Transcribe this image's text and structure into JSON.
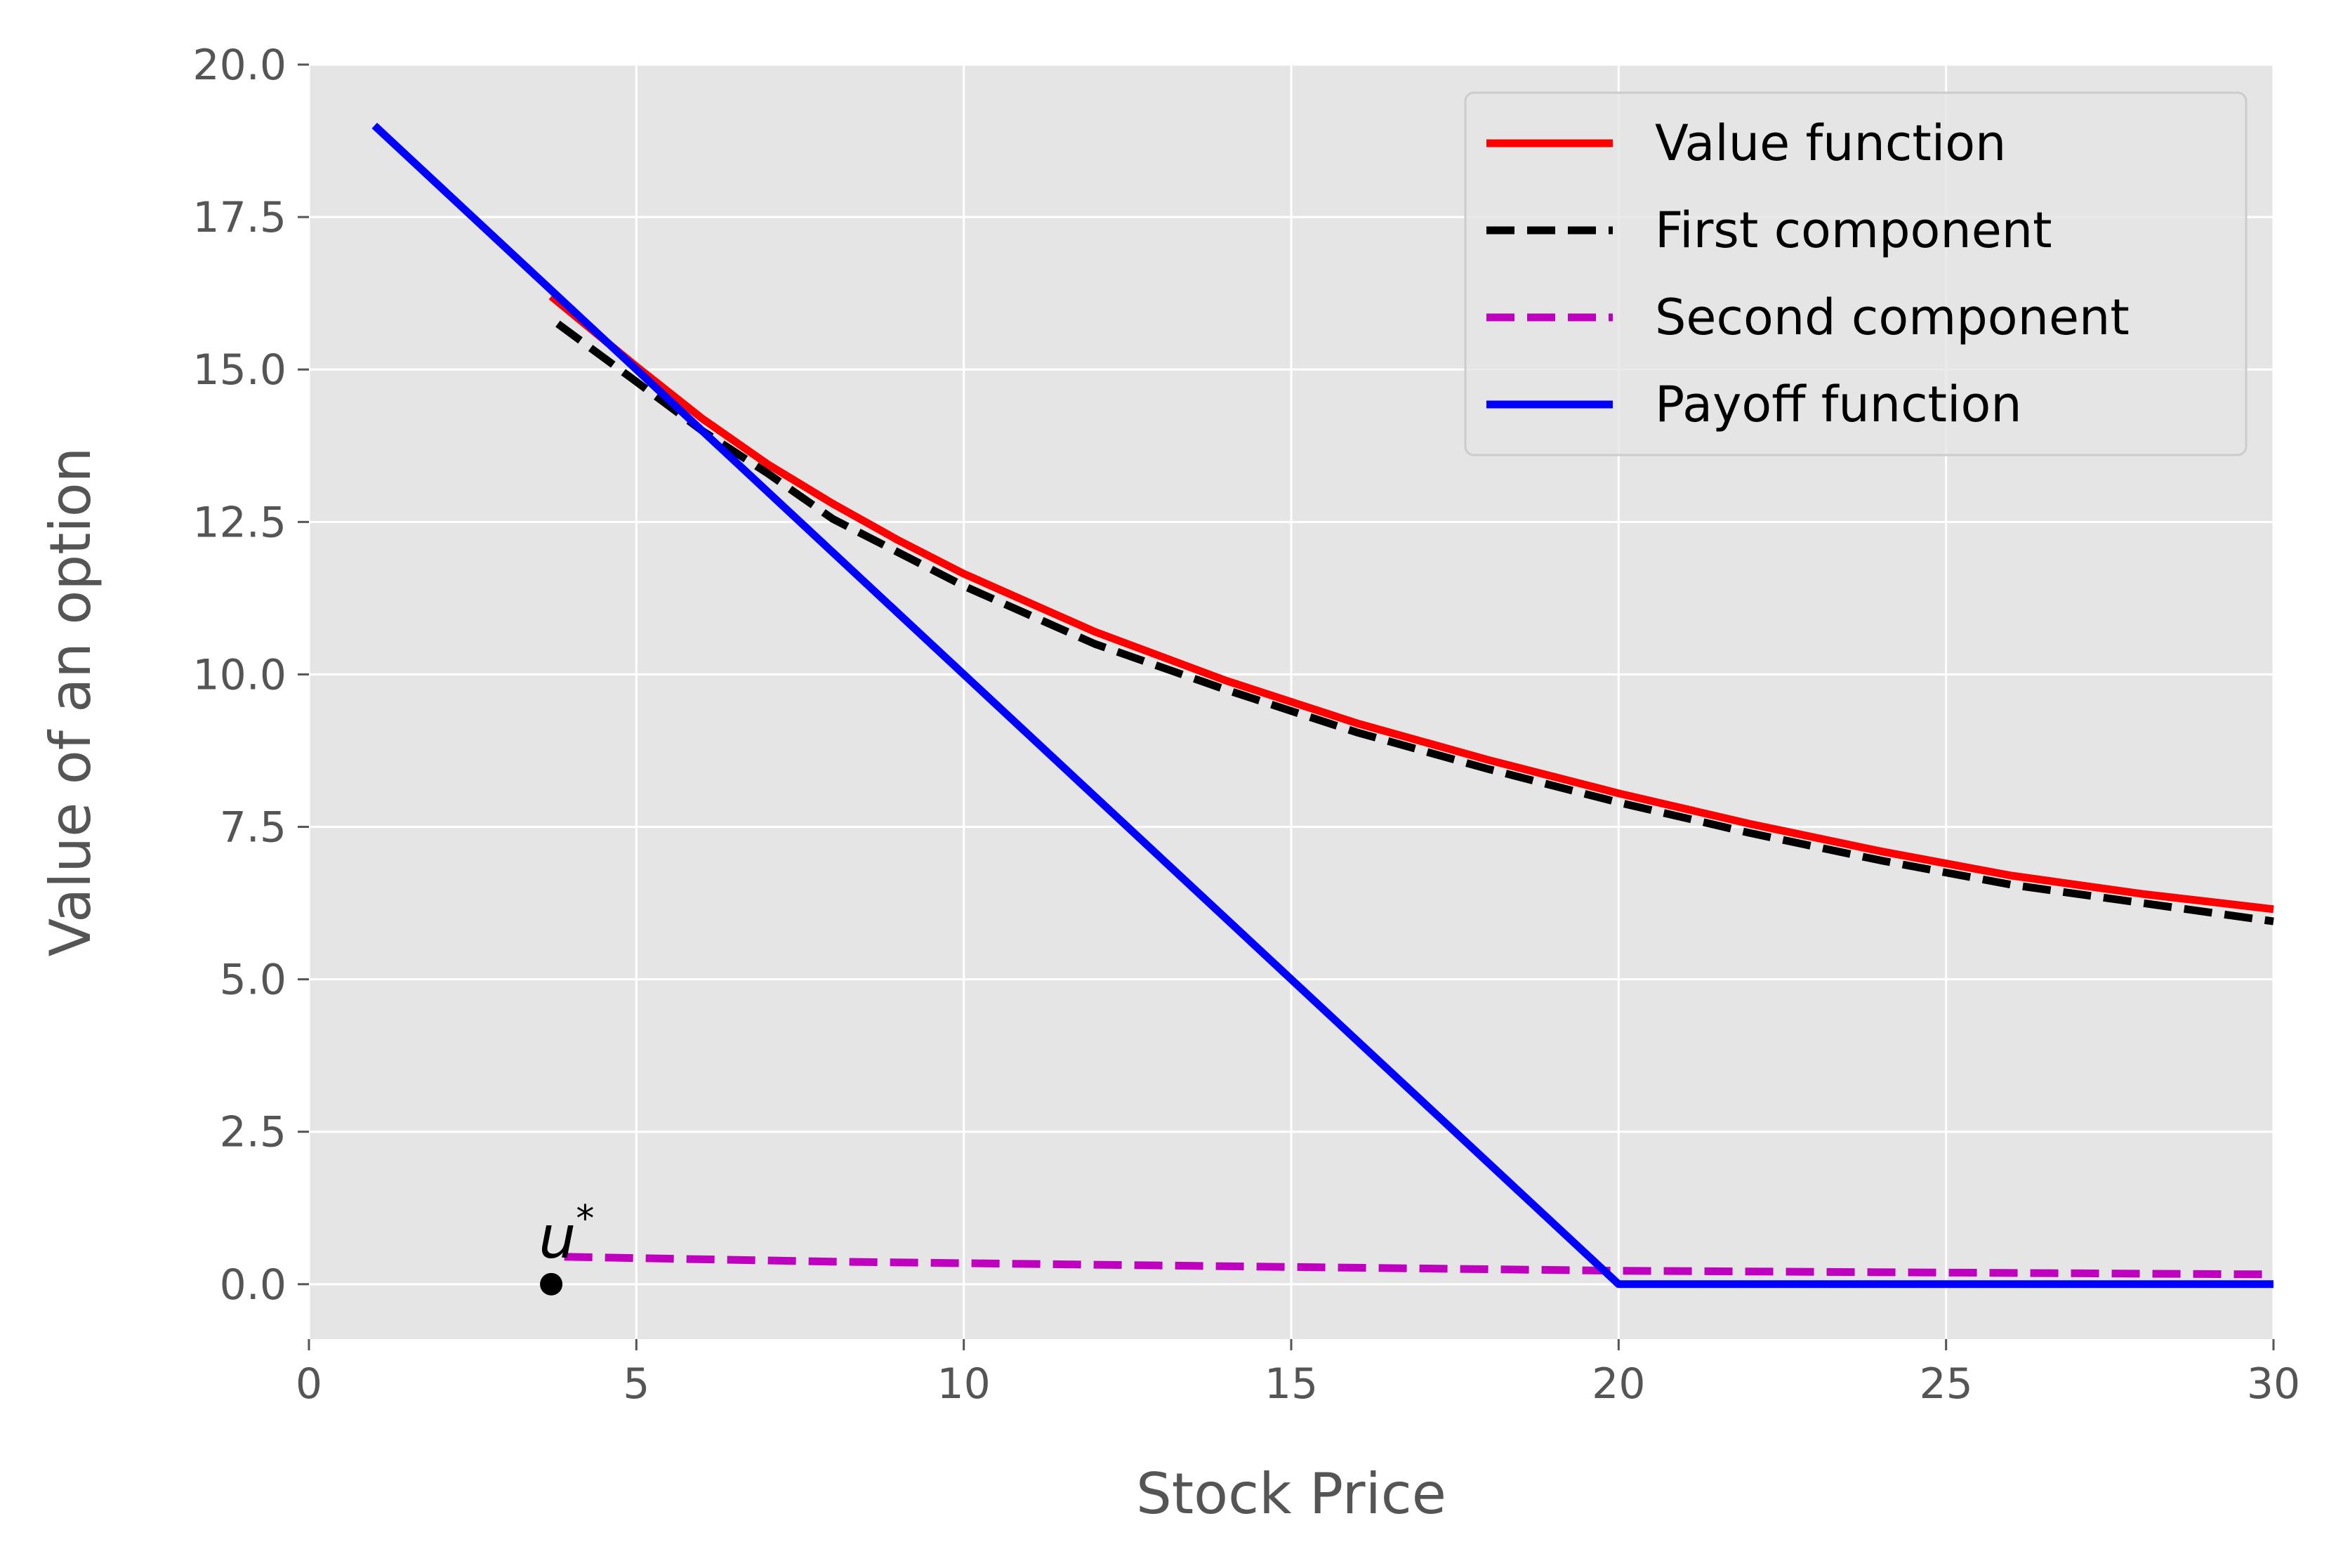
{
  "chart_data": {
    "type": "line",
    "xlabel": "Stock Price",
    "ylabel": "Value of an option",
    "xlim": [
      0,
      30
    ],
    "ylim": [
      -0.9,
      20.0
    ],
    "xticks": [
      "0",
      "5",
      "10",
      "15",
      "20",
      "25",
      "30"
    ],
    "yticks": [
      "0.0",
      "2.5",
      "5.0",
      "7.5",
      "10.0",
      "12.5",
      "15.0",
      "17.5",
      "20.0"
    ],
    "grid": true,
    "legend_position": "top-right",
    "background": "#e5e5e5",
    "series": [
      {
        "name": "Value function",
        "color": "#ff0000",
        "style": "solid",
        "x": [
          3.7,
          5,
          6,
          7,
          8,
          9,
          10,
          12,
          14,
          16,
          18,
          20,
          22,
          24,
          26,
          28,
          30
        ],
        "y": [
          16.2,
          15.05,
          14.2,
          13.45,
          12.8,
          12.2,
          11.65,
          10.7,
          9.9,
          9.2,
          8.6,
          8.05,
          7.55,
          7.1,
          6.7,
          6.4,
          6.15
        ]
      },
      {
        "name": "First component",
        "color": "#000000",
        "style": "dashed",
        "x": [
          3.8,
          5,
          6,
          7,
          8,
          9,
          10,
          12,
          14,
          16,
          18,
          20,
          22,
          24,
          26,
          28,
          30
        ],
        "y": [
          15.75,
          14.8,
          14.0,
          13.3,
          12.55,
          12.0,
          11.45,
          10.5,
          9.75,
          9.05,
          8.45,
          7.9,
          7.4,
          6.95,
          6.55,
          6.25,
          5.95
        ]
      },
      {
        "name": "Second component",
        "color": "#bf00bf",
        "style": "dashed",
        "x": [
          3.9,
          8,
          12,
          16,
          20,
          25,
          30
        ],
        "y": [
          0.45,
          0.37,
          0.32,
          0.27,
          0.22,
          0.19,
          0.16
        ]
      },
      {
        "name": "Payoff function",
        "color": "#0000ff",
        "style": "solid",
        "x": [
          1,
          18,
          20,
          30
        ],
        "y": [
          19,
          2,
          0,
          0
        ]
      }
    ],
    "annotation": {
      "text": "u",
      "superscript": "*",
      "x": 3.7,
      "y": 0
    }
  }
}
